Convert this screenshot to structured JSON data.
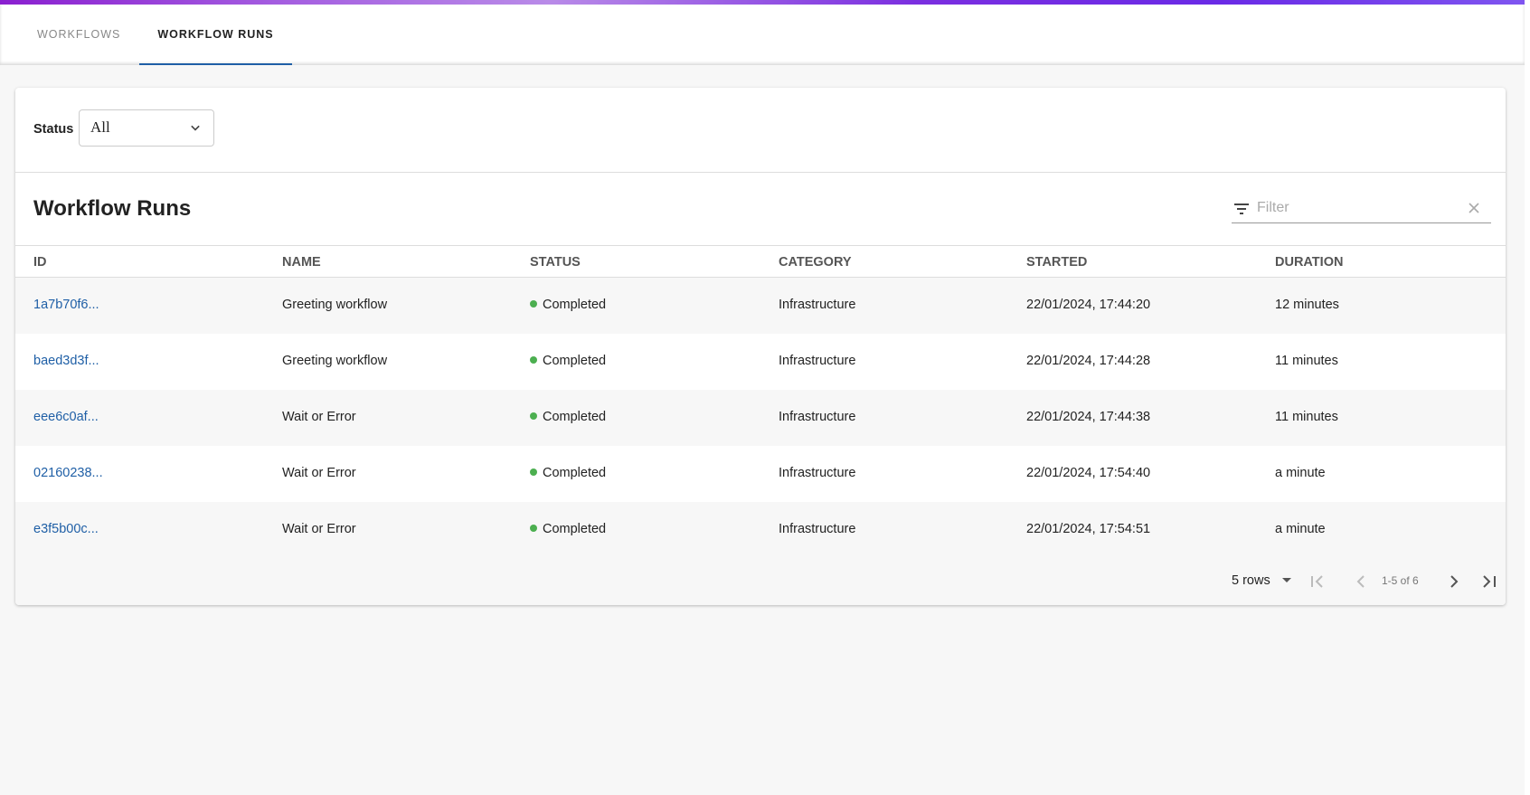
{
  "tabs": [
    {
      "label": "Workflows",
      "active": false
    },
    {
      "label": "Workflow Runs",
      "active": true
    }
  ],
  "filters": {
    "status_label": "Status",
    "status_value": "All"
  },
  "table": {
    "title": "Workflow Runs",
    "filter_placeholder": "Filter",
    "columns": [
      "ID",
      "NAME",
      "STATUS",
      "CATEGORY",
      "STARTED",
      "DURATION"
    ],
    "rows": [
      {
        "id": "1a7b70f6...",
        "name": "Greeting workflow",
        "status": "Completed",
        "category": "Infrastructure",
        "started": "22/01/2024, 17:44:20",
        "duration": "12 minutes"
      },
      {
        "id": "baed3d3f...",
        "name": "Greeting workflow",
        "status": "Completed",
        "category": "Infrastructure",
        "started": "22/01/2024, 17:44:28",
        "duration": "11 minutes"
      },
      {
        "id": "eee6c0af...",
        "name": "Wait or Error",
        "status": "Completed",
        "category": "Infrastructure",
        "started": "22/01/2024, 17:44:38",
        "duration": "11 minutes"
      },
      {
        "id": "02160238...",
        "name": "Wait or Error",
        "status": "Completed",
        "category": "Infrastructure",
        "started": "22/01/2024, 17:54:40",
        "duration": "a minute"
      },
      {
        "id": "e3f5b00c...",
        "name": "Wait or Error",
        "status": "Completed",
        "category": "Infrastructure",
        "started": "22/01/2024, 17:54:51",
        "duration": "a minute"
      }
    ]
  },
  "pagination": {
    "rows_per_page": "5 rows",
    "range": "1-5 of 6"
  },
  "colors": {
    "accent": "#1f5fa6",
    "status_completed": "#4caf50",
    "topbar": "#7b2fe0"
  }
}
